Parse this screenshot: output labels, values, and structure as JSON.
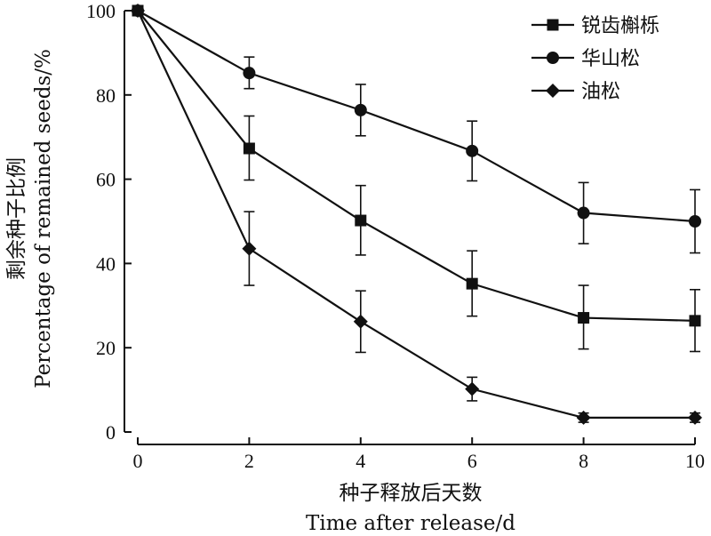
{
  "chart_data": {
    "type": "line",
    "xlabel_lines": [
      "种子释放后天数",
      "Time after release/d"
    ],
    "ylabel_lines": [
      "剩余种子比例",
      "Percentage of remained seeds/%"
    ],
    "xlim": [
      0,
      10
    ],
    "ylim": [
      0,
      100
    ],
    "xticks": [
      0,
      2,
      4,
      6,
      8,
      10
    ],
    "yticks": [
      0,
      20,
      40,
      60,
      80,
      100
    ],
    "grid": false,
    "legend_position": "top-right",
    "x": [
      0,
      2,
      4,
      6,
      8,
      10
    ],
    "series": [
      {
        "name": "锐齿槲栎",
        "marker": "square",
        "values": [
          100,
          67.3,
          50.2,
          35.2,
          27.1,
          26.4
        ],
        "error_upper": [
          100,
          75,
          58.5,
          43,
          34.8,
          33.8
        ],
        "error_lower": [
          100,
          59.8,
          42,
          27.5,
          19.7,
          19.1
        ]
      },
      {
        "name": "华山松",
        "marker": "circle",
        "values": [
          100,
          85.2,
          76.4,
          66.7,
          52,
          50
        ],
        "error_upper": [
          100,
          89,
          82.5,
          73.8,
          59.2,
          57.5
        ],
        "error_lower": [
          100,
          81.5,
          70.3,
          59.6,
          44.7,
          42.5
        ]
      },
      {
        "name": "油松",
        "marker": "diamond",
        "values": [
          100,
          43.5,
          26.2,
          10.2,
          3.4,
          3.4
        ],
        "error_upper": [
          100,
          52.3,
          33.5,
          13,
          4.5,
          4.5
        ],
        "error_lower": [
          100,
          34.8,
          18.9,
          7.4,
          2.3,
          2.3
        ]
      }
    ]
  }
}
